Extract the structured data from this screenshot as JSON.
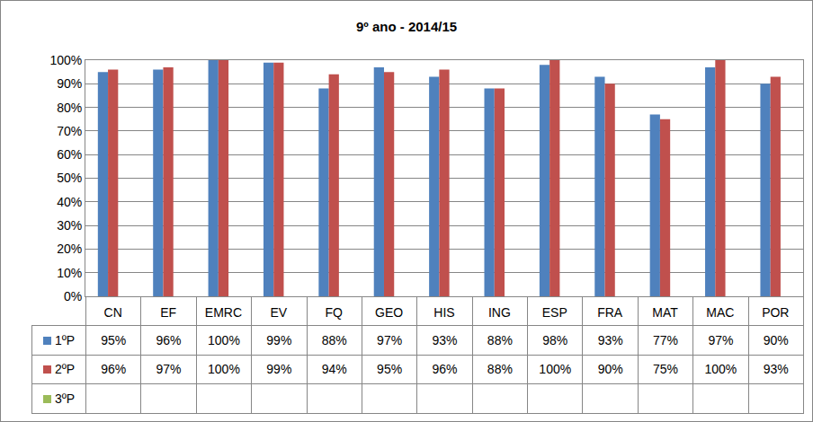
{
  "chart_data": {
    "type": "bar",
    "title": "9º ano - 2014/15",
    "categories": [
      "CN",
      "EF",
      "EMRC",
      "EV",
      "FQ",
      "GEO",
      "HIS",
      "ING",
      "ESP",
      "FRA",
      "MAT",
      "MAC",
      "POR"
    ],
    "series": [
      {
        "name": "1ºP",
        "color": "#4f81bd",
        "values": [
          95,
          96,
          100,
          99,
          88,
          97,
          93,
          88,
          98,
          93,
          77,
          97,
          90
        ],
        "value_labels": [
          "95%",
          "96%",
          "100%",
          "99%",
          "88%",
          "97%",
          "93%",
          "88%",
          "98%",
          "93%",
          "77%",
          "97%",
          "90%"
        ]
      },
      {
        "name": "2ºP",
        "color": "#c0504d",
        "values": [
          96,
          97,
          100,
          99,
          94,
          95,
          96,
          88,
          100,
          90,
          75,
          100,
          93
        ],
        "value_labels": [
          "96%",
          "97%",
          "100%",
          "99%",
          "94%",
          "95%",
          "96%",
          "88%",
          "100%",
          "90%",
          "75%",
          "100%",
          "93%"
        ]
      },
      {
        "name": "3ºP",
        "color": "#9bbb59",
        "values": [
          null,
          null,
          null,
          null,
          null,
          null,
          null,
          null,
          null,
          null,
          null,
          null,
          null
        ]
      }
    ],
    "ylim": [
      0,
      100
    ],
    "yticks": [
      {
        "value": 0,
        "label": "0%"
      },
      {
        "value": 10,
        "label": "10%"
      },
      {
        "value": 20,
        "label": "20%"
      },
      {
        "value": 30,
        "label": "30%"
      },
      {
        "value": 40,
        "label": "40%"
      },
      {
        "value": 50,
        "label": "50%"
      },
      {
        "value": 60,
        "label": "60%"
      },
      {
        "value": 70,
        "label": "70%"
      },
      {
        "value": 80,
        "label": "80%"
      },
      {
        "value": 90,
        "label": "90%"
      },
      {
        "value": 100,
        "label": "100%"
      }
    ],
    "grid": true
  }
}
